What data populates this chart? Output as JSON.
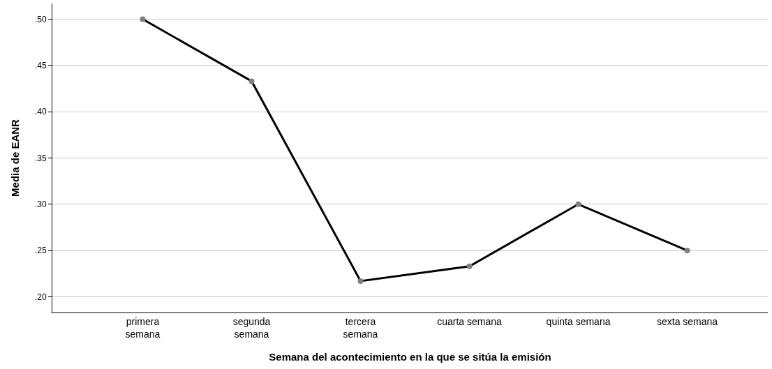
{
  "chart_data": {
    "type": "line",
    "xlabel": "Semana del acontecimiento en la que se sitúa la emisión",
    "ylabel": "Media de EANR",
    "categories": [
      "primera\nsemana",
      "segunda\nsemana",
      "tercera\nsemana",
      "cuarta semana",
      "quinta semana",
      "sexta semana"
    ],
    "series": [
      {
        "color": "#000000",
        "values": [
          0.5,
          0.433,
          0.217,
          0.233,
          0.3,
          0.25
        ]
      }
    ],
    "ylim": [
      0.183,
      0.517
    ],
    "yticks": [
      {
        "value": 0.2,
        "label": ".20"
      },
      {
        "value": 0.25,
        "label": ".25"
      },
      {
        "value": 0.3,
        "label": ".30"
      },
      {
        "value": 0.35,
        "label": ".35"
      },
      {
        "value": 0.4,
        "label": ".40"
      },
      {
        "value": 0.45,
        "label": ".45"
      },
      {
        "value": 0.5,
        "label": ".50"
      }
    ],
    "grid": "y",
    "marker": "circle",
    "line_style": "solid"
  }
}
